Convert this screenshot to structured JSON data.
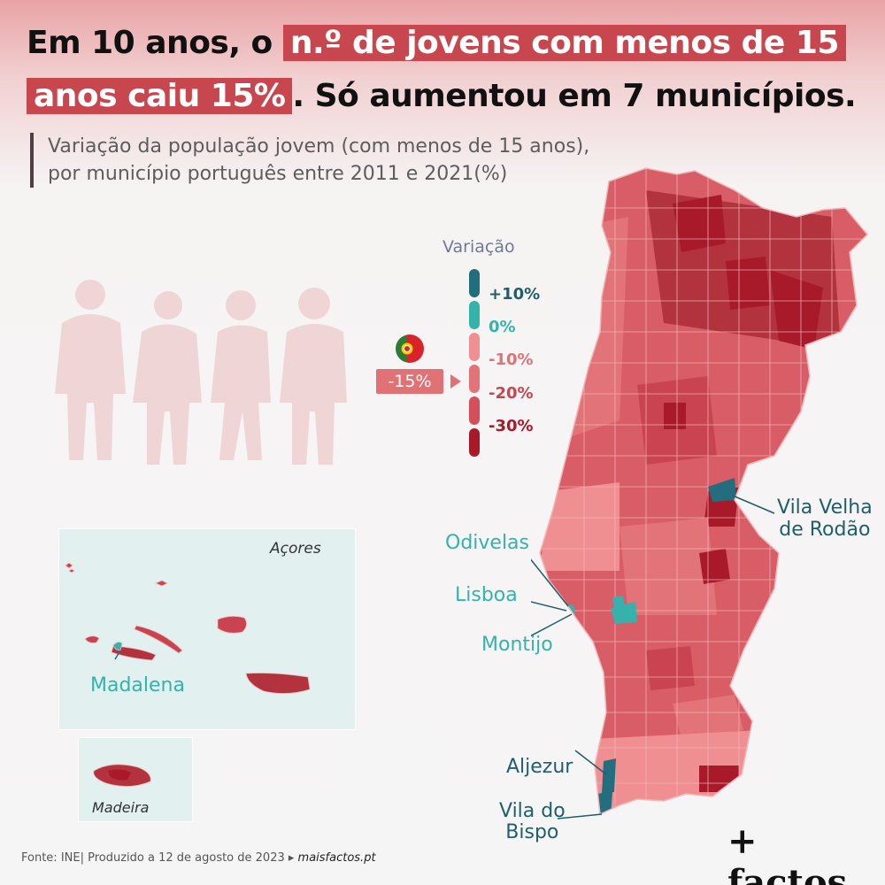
{
  "title": {
    "line1_pre": "Em 10 anos, o",
    "line1_hl": "n.º de jovens com menos de 15",
    "line2_hl": "anos caiu 15%",
    "line2_post": ". Só aumentou em 7 municípios."
  },
  "subtitle": {
    "line1": "Variação da população jovem (com menos de 15 anos),",
    "line2": "por município português entre 2011 e 2021(%)"
  },
  "legend": {
    "title": "Variação",
    "national_value": "-15%",
    "national_position": -15,
    "items": [
      {
        "label": "+10%",
        "color": "#226d7e",
        "text_color": "#1f5f6b"
      },
      {
        "label": "0%",
        "color": "#35b2ac",
        "text_color": "#35b2ac"
      },
      {
        "label": "-10%",
        "color": "#f08f92",
        "text_color": "#e07276"
      },
      {
        "label": "-20%",
        "color": "#d3505a",
        "text_color": "#c8464d"
      },
      {
        "label": "-30%",
        "color": "#a8192a",
        "text_color": "#a8192a"
      }
    ]
  },
  "map_colors": {
    "land": "#d85d66",
    "land_light": "#f08f92",
    "land_dark": "#b2333e",
    "borders": "#f1b6b8",
    "islands_bg": "#e2f0ef",
    "increase_light": "#35b2ac",
    "increase_dark": "#226d7e"
  },
  "labels": {
    "vila_velha_1": "Vila Velha",
    "vila_velha_2": "de Rodão",
    "odivelas": "Odivelas",
    "lisboa": "Lisboa",
    "montijo": "Montijo",
    "aljezur": "Aljezur",
    "vila_bispo_1": "Vila do",
    "vila_bispo_2": "Bispo",
    "acores": "Açores",
    "madalena": "Madalena",
    "madeira": "Madeira"
  },
  "footer": {
    "source": "Fonte: INE|  Produzido a 12 de agosto de 2023 ▸ ",
    "site": "maisfactos.pt"
  },
  "brand": "+ factos"
}
